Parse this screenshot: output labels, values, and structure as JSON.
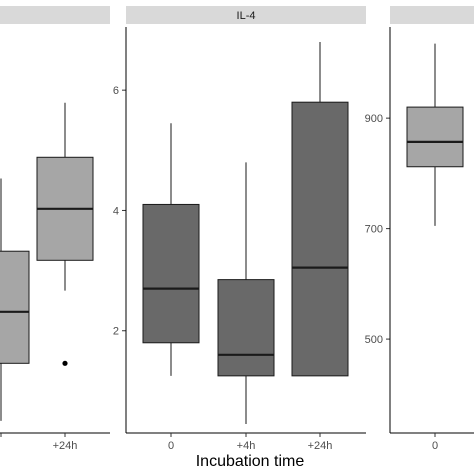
{
  "chart_data": [
    {
      "type": "box",
      "title": "",
      "xlabel": "",
      "categories": [
        "",
        "+24h"
      ],
      "series": [
        {
          "category": "",
          "whisker_low": 0.5,
          "q1": 1.45,
          "median": 2.3,
          "q3": 3.3,
          "whisker_high": 4.5,
          "outliers": []
        },
        {
          "category": "+24h",
          "whisker_low": 2.65,
          "q1": 3.15,
          "median": 4.0,
          "q3": 4.85,
          "whisker_high": 5.75,
          "outliers": [
            1.45
          ]
        }
      ],
      "ylim": [
        0.3,
        7.0
      ],
      "yticks": [],
      "fill": "#a6a6a6"
    },
    {
      "type": "box",
      "title": "IL-4",
      "xlabel": "",
      "categories": [
        "0",
        "+4h",
        "+24h"
      ],
      "series": [
        {
          "category": "0",
          "whisker_low": 1.25,
          "q1": 1.8,
          "median": 2.7,
          "q3": 4.1,
          "whisker_high": 5.45,
          "outliers": []
        },
        {
          "category": "+4h",
          "whisker_low": 0.45,
          "q1": 1.25,
          "median": 1.6,
          "q3": 2.85,
          "whisker_high": 4.8,
          "outliers": []
        },
        {
          "category": "+24h",
          "whisker_low": 1.25,
          "q1": 1.25,
          "median": 3.05,
          "q3": 5.8,
          "whisker_high": 6.8,
          "outliers": []
        }
      ],
      "ylim": [
        0.3,
        7.05
      ],
      "yticks": [
        2,
        4,
        6
      ],
      "fill": "#696969"
    },
    {
      "type": "box",
      "title": "",
      "xlabel": "",
      "categories": [
        "0"
      ],
      "series": [
        {
          "category": "0",
          "whisker_low": 705,
          "q1": 812,
          "median": 857,
          "q3": 920,
          "whisker_high": 1035,
          "outliers": []
        }
      ],
      "ylim": [
        330,
        1065
      ],
      "yticks": [
        500,
        700,
        900
      ],
      "fill": "#a6a6a6"
    }
  ],
  "axis_title": "Incubation time",
  "colors": {
    "strip": "#d9d9d9",
    "axis": "#000000",
    "outline": "#1a1a1a"
  }
}
